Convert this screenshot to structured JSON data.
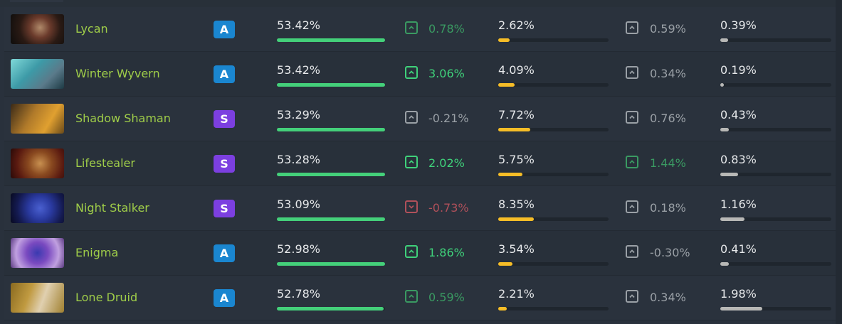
{
  "colors": {
    "hero_name": "#9fcd49",
    "tier_A": "#1a86d0",
    "tier_S": "#7c3fe0",
    "winrate_bar": "#44d07a",
    "pickrate_bar": "#f6bd27",
    "banrate_bar": "#b8b8b6",
    "change_up_strong": "#3fd17a",
    "change_up_weak": "#3a9a62",
    "change_neutral": "#9aa0a6",
    "change_down": "#b0505a"
  },
  "rows": [
    {
      "hero": "Lycan",
      "portrait": "lycan-portrait",
      "tier": "A",
      "winrate": "53.42%",
      "winrate_pct": 100,
      "winrate_change": {
        "value": "0.78%",
        "direction": "up",
        "tone": "up_weak"
      },
      "pickrate": "2.62%",
      "pickrate_pct": 10,
      "pickrate_change": {
        "value": "0.59%",
        "direction": "up",
        "tone": "neutral"
      },
      "banrate": "0.39%",
      "banrate_pct": 7
    },
    {
      "hero": "Winter Wyvern",
      "portrait": "winter-wyvern-portrait",
      "tier": "A",
      "winrate": "53.42%",
      "winrate_pct": 100,
      "winrate_change": {
        "value": "3.06%",
        "direction": "up",
        "tone": "up_strong"
      },
      "pickrate": "4.09%",
      "pickrate_pct": 15,
      "pickrate_change": {
        "value": "0.34%",
        "direction": "up",
        "tone": "neutral"
      },
      "banrate": "0.19%",
      "banrate_pct": 3
    },
    {
      "hero": "Shadow Shaman",
      "portrait": "shadow-shaman-portrait",
      "tier": "S",
      "winrate": "53.29%",
      "winrate_pct": 100,
      "winrate_change": {
        "value": "-0.21%",
        "direction": "up",
        "tone": "neutral"
      },
      "pickrate": "7.72%",
      "pickrate_pct": 29,
      "pickrate_change": {
        "value": "0.76%",
        "direction": "up",
        "tone": "neutral"
      },
      "banrate": "0.43%",
      "banrate_pct": 8
    },
    {
      "hero": "Lifestealer",
      "portrait": "lifestealer-portrait",
      "tier": "S",
      "winrate": "53.28%",
      "winrate_pct": 100,
      "winrate_change": {
        "value": "2.02%",
        "direction": "up",
        "tone": "up_strong"
      },
      "pickrate": "5.75%",
      "pickrate_pct": 22,
      "pickrate_change": {
        "value": "1.44%",
        "direction": "up",
        "tone": "up_weak"
      },
      "banrate": "0.83%",
      "banrate_pct": 16
    },
    {
      "hero": "Night Stalker",
      "portrait": "night-stalker-portrait",
      "tier": "S",
      "winrate": "53.09%",
      "winrate_pct": 100,
      "winrate_change": {
        "value": "-0.73%",
        "direction": "down",
        "tone": "down"
      },
      "pickrate": "8.35%",
      "pickrate_pct": 32,
      "pickrate_change": {
        "value": "0.18%",
        "direction": "up",
        "tone": "neutral"
      },
      "banrate": "1.16%",
      "banrate_pct": 22
    },
    {
      "hero": "Enigma",
      "portrait": "enigma-portrait",
      "tier": "A",
      "winrate": "52.98%",
      "winrate_pct": 100,
      "winrate_change": {
        "value": "1.86%",
        "direction": "up",
        "tone": "up_strong"
      },
      "pickrate": "3.54%",
      "pickrate_pct": 13,
      "pickrate_change": {
        "value": "-0.30%",
        "direction": "up",
        "tone": "neutral"
      },
      "banrate": "0.41%",
      "banrate_pct": 8
    },
    {
      "hero": "Lone Druid",
      "portrait": "lone-druid-portrait",
      "tier": "A",
      "winrate": "52.78%",
      "winrate_pct": 99,
      "winrate_change": {
        "value": "0.59%",
        "direction": "up",
        "tone": "up_weak"
      },
      "pickrate": "2.21%",
      "pickrate_pct": 8,
      "pickrate_change": {
        "value": "0.34%",
        "direction": "up",
        "tone": "neutral"
      },
      "banrate": "1.98%",
      "banrate_pct": 38
    }
  ]
}
